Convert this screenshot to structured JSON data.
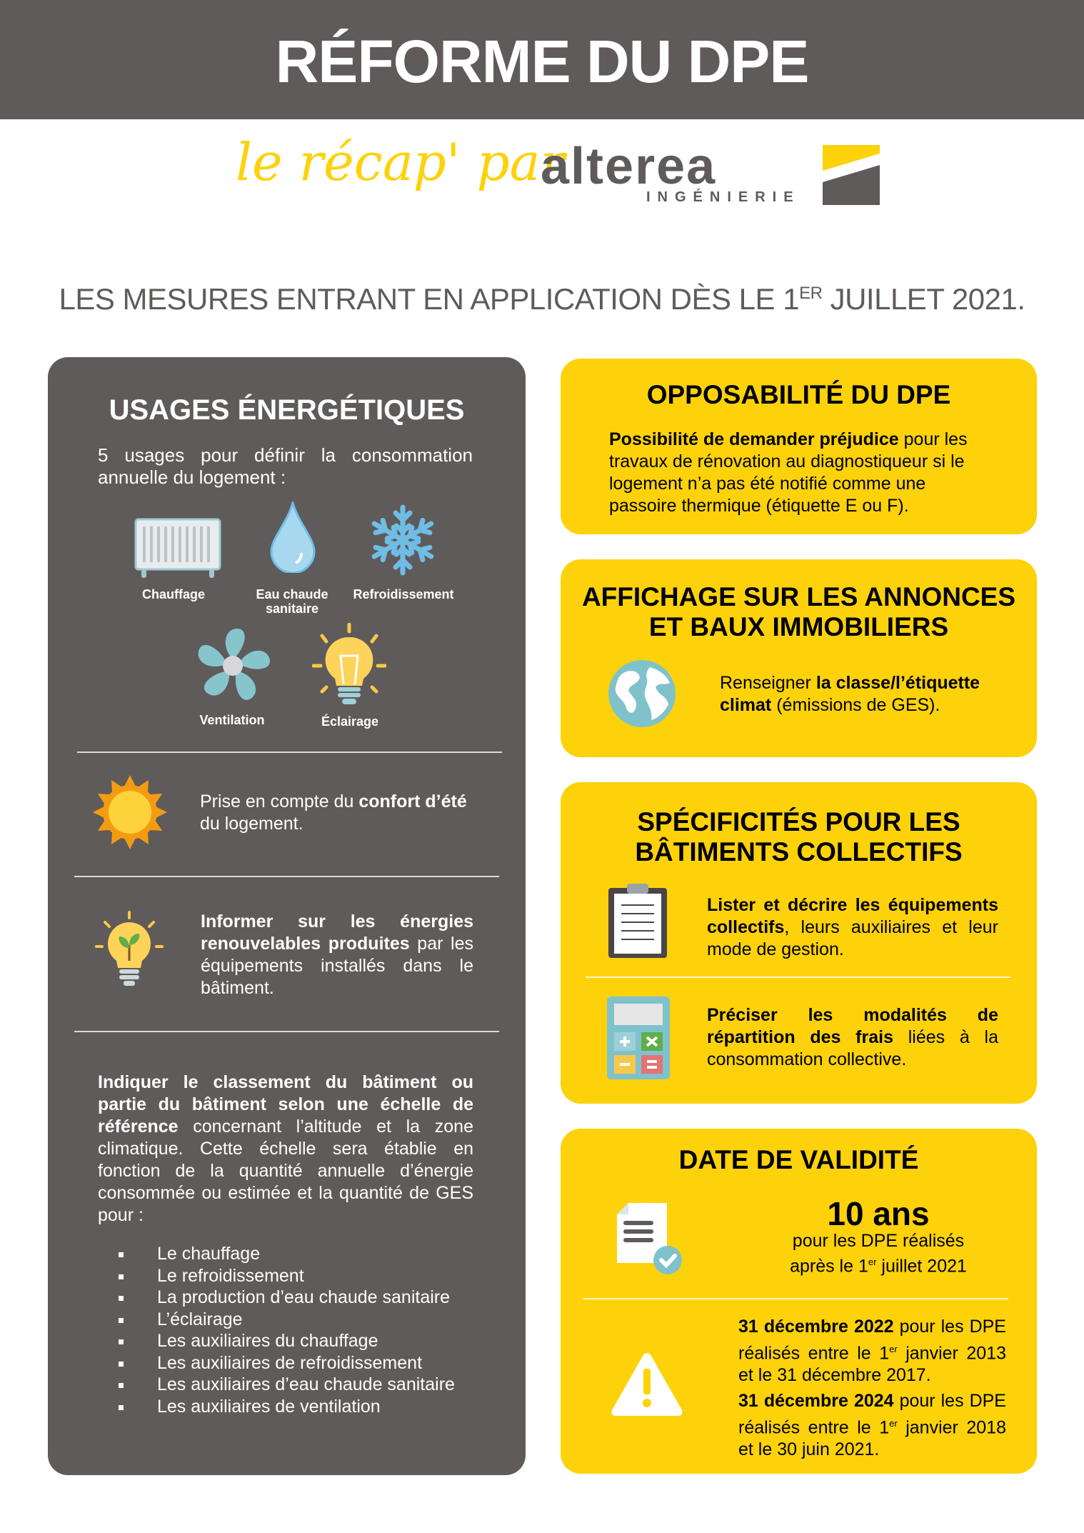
{
  "header": {
    "title": "RÉFORME DU DPE"
  },
  "brand": {
    "tagline": "le récap' par",
    "logo_word": "alterea",
    "logo_sub": "INGÉNIERIE",
    "yellow": "#FDD20A",
    "gray": "#5F5B5A"
  },
  "subtitle": {
    "before": "LES MESURES ENTRANT EN APPLICATION DÈS LE 1",
    "sup": "ER",
    "after": " JUILLET 2021."
  },
  "usages": {
    "title": "USAGES ÉNERGÉTIQUES",
    "intro": "5 usages pour définir la consommation annuelle du logement :",
    "items": [
      {
        "label": "Chauffage",
        "icon": "radiator-icon"
      },
      {
        "label": "Eau chaude sanitaire",
        "icon": "water-drop-icon"
      },
      {
        "label": "Refroidissement",
        "icon": "snowflake-icon"
      },
      {
        "label": "Ventilation",
        "icon": "fan-icon"
      },
      {
        "label": "Éclairage",
        "icon": "light-bulb-icon"
      }
    ],
    "confort": {
      "pre": "Prise en compte du ",
      "bold": "confort d’été",
      "post": " du logement."
    },
    "renouvelables": {
      "bold": "Informer sur les énergies renouvelables produites",
      "post": " par les équipements installés dans le bâtiment."
    },
    "classement": {
      "bold": "Indiquer le classement du bâtiment ou partie du bâtiment selon une échelle de référence",
      "post": " concernant l’altitude et la zone climatique. Cette échelle sera établie en fonction de la quantité annuelle d’énergie consommée ou estimée et la quantité de GES pour :"
    },
    "list": [
      "Le chauffage",
      "Le refroidissement",
      "La production d’eau chaude sanitaire",
      "L’éclairage",
      "Les auxiliaires du chauffage",
      "Les auxiliaires de refroidissement",
      "Les auxiliaires d’eau chaude sanitaire",
      "Les auxiliaires de ventilation"
    ]
  },
  "opposabilite": {
    "title": "OPPOSABILITÉ DU DPE",
    "bold": "Possibilité de demander préjudice",
    "post": " pour les travaux de rénovation au diagnostiqueur si le logement n’a pas été notifié comme une passoire thermique (étiquette E ou F)."
  },
  "affichage": {
    "title1": "AFFICHAGE SUR LES ANNONCES",
    "title2": "ET BAUX IMMOBILIERS",
    "pre": "Renseigner ",
    "bold": "la classe/l’étiquette climat",
    "post": " (émissions de GES)."
  },
  "collectifs": {
    "title1": "SPÉCIFICITÉS POUR LES",
    "title2": "BÂTIMENTS COLLECTIFS",
    "item1": {
      "bold": "Lister et décrire les équipements collectifs",
      "post": ", leurs auxiliaires et leur mode de gestion."
    },
    "item2": {
      "bold": "Préciser les modalités de répartition des frais",
      "post": " liées à la consommation collective."
    }
  },
  "validite": {
    "title": "DATE DE VALIDITÉ",
    "big": "10 ans",
    "line1": "pour les DPE réalisés",
    "line2a": "après le 1",
    "line2sup": "er",
    "line2b": " juillet 2021",
    "d1": {
      "bold": "31 décembre 2022",
      "a": " pour les DPE réalisés entre le 1",
      "sup": "er",
      "b": " janvier 2013 et le 31 décembre 2017."
    },
    "d2": {
      "bold": "31 décembre 2024",
      "a": " pour les DPE réalisés entre le 1",
      "sup": "er",
      "b": " janvier 2018 et le 30 juin 2021."
    }
  }
}
